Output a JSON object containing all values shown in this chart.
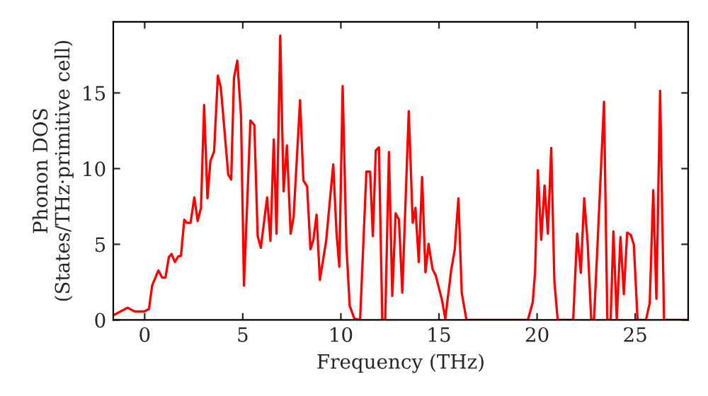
{
  "chart_data": {
    "type": "line",
    "xlabel": "Frequency (THz)",
    "ylabel": "Phonon DOS\n(States/THz·primitive cell)",
    "xlim": [
      -1.6,
      27.7
    ],
    "ylim": [
      0,
      19.7
    ],
    "xticks": [
      0,
      5,
      10,
      15,
      20,
      25
    ],
    "yticks": [
      0,
      5,
      10,
      15
    ],
    "grid": false,
    "legend": false,
    "marker": "none",
    "line_style": "solid",
    "series": [
      {
        "color": "#ff0000",
        "x": [
          -1.59,
          -0.87,
          -0.51,
          -0.02,
          0.22,
          0.38,
          0.7,
          0.89,
          1.06,
          1.23,
          1.37,
          1.54,
          1.71,
          1.85,
          2.02,
          2.14,
          2.34,
          2.53,
          2.7,
          2.87,
          3.03,
          3.2,
          3.35,
          3.54,
          3.73,
          3.88,
          4.26,
          4.41,
          4.55,
          4.72,
          4.91,
          5.06,
          5.39,
          5.59,
          5.76,
          5.92,
          6.24,
          6.41,
          6.58,
          6.72,
          6.91,
          7.08,
          7.25,
          7.44,
          7.59,
          7.92,
          8.09,
          8.28,
          8.45,
          8.6,
          8.76,
          8.93,
          9.25,
          9.61,
          9.78,
          9.92,
          10.09,
          10.28,
          10.45,
          10.69,
          10.98,
          11.3,
          11.49,
          11.63,
          11.78,
          11.94,
          12.11,
          12.26,
          12.45,
          12.62,
          12.79,
          12.96,
          13.13,
          13.46,
          13.66,
          13.8,
          13.97,
          14.14,
          14.31,
          14.47,
          14.67,
          14.83,
          15.15,
          15.32,
          15.63,
          15.8,
          15.99,
          16.16,
          16.4,
          19.53,
          19.78,
          19.9,
          20.04,
          20.21,
          20.38,
          20.55,
          20.72,
          20.88,
          21.05,
          21.84,
          22.04,
          22.23,
          22.4,
          22.57,
          22.76,
          22.9,
          23.1,
          23.41,
          23.58,
          23.75,
          23.89,
          24.06,
          24.25,
          24.42,
          24.59,
          24.78,
          24.93,
          25.12,
          25.55,
          25.74,
          25.92,
          26.08,
          26.27,
          26.47,
          27.67
        ],
        "values": [
          0.31,
          0.81,
          0.56,
          0.56,
          0.72,
          2.27,
          3.27,
          2.8,
          2.8,
          4.14,
          4.36,
          3.83,
          4.2,
          4.24,
          6.63,
          6.42,
          6.42,
          8.1,
          6.54,
          7.41,
          14.2,
          8.04,
          10.5,
          11.15,
          16.14,
          15.36,
          9.6,
          9.28,
          15.98,
          17.13,
          13.49,
          2.27,
          13.18,
          12.87,
          5.54,
          4.77,
          8.1,
          5.23,
          11.93,
          5.7,
          18.78,
          8.5,
          11.53,
          5.7,
          6.79,
          14.52,
          9.22,
          8.82,
          4.67,
          5.3,
          6.95,
          2.65,
          5.23,
          10.28,
          5.7,
          3.52,
          15.45,
          4.93,
          0.93,
          0.09,
          0,
          9.8,
          9.8,
          5.54,
          11.2,
          11.4,
          0,
          0,
          11.1,
          1.59,
          7.04,
          6.63,
          1.81,
          13.8,
          6.42,
          7.41,
          3.83,
          9.44,
          3.15,
          5.02,
          3.36,
          2.96,
          1.34,
          0.09,
          3.36,
          4.61,
          8.04,
          1.81,
          0,
          0,
          1.18,
          3.21,
          9.9,
          5.3,
          8.88,
          5.7,
          11.37,
          2.59,
          0,
          0,
          5.7,
          3.11,
          8.04,
          5.23,
          0,
          0,
          5.54,
          14.42,
          0,
          0,
          5.86,
          0,
          5.48,
          1.71,
          5.77,
          5.61,
          4.98,
          0,
          0,
          1.12,
          8.57,
          1.4,
          15.14,
          0,
          0
        ]
      }
    ]
  }
}
